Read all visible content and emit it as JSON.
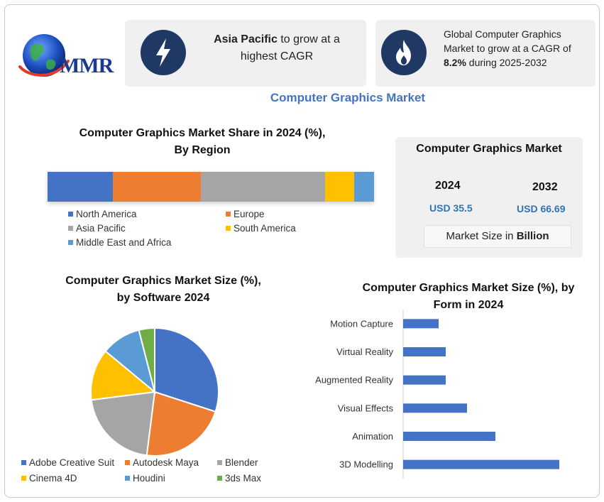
{
  "logo": {
    "text": "MMR"
  },
  "cards": {
    "highlight": {
      "bold": "Asia Pacific",
      "rest": " to grow at a highest CAGR",
      "icon": "lightning-icon"
    },
    "growth": {
      "pre": "Global Computer Graphics Market to grow at a CAGR of ",
      "bold": "8.2%",
      "post": " during 2025-2032",
      "icon": "flame-icon"
    }
  },
  "main_title": "Computer Graphics Market",
  "market_size": {
    "title": "Computer Graphics Market",
    "year1": "2024",
    "value1": "USD 35.5",
    "year2": "2032",
    "value2": "USD 66.69",
    "footer_pre": "Market Size in ",
    "footer_bold": "Billion"
  },
  "colors": {
    "blue": "#4472c4",
    "orange": "#ed7d31",
    "gray": "#a5a5a5",
    "yellow": "#ffc000",
    "lightblue": "#5b9bd5",
    "green": "#70ad47",
    "navy": "#1f3864"
  },
  "chart_data": [
    {
      "type": "bar",
      "orientation": "horizontal-stacked",
      "title_line1": "Computer Graphics Market Share in 2024 (%),",
      "title_line2": "By Region",
      "categories": [
        "North America",
        "Europe",
        "Asia Pacific",
        "South America",
        "Middle East and Africa"
      ],
      "values": [
        20,
        27,
        38,
        9,
        6
      ],
      "colors": [
        "#4472c4",
        "#ed7d31",
        "#a5a5a5",
        "#ffc000",
        "#5b9bd5"
      ]
    },
    {
      "type": "pie",
      "title_line1": "Computer Graphics Market  Size (%),",
      "title_line2": "by Software 2024",
      "categories": [
        "Adobe Creative Suit",
        "Autodesk Maya",
        "Blender",
        "Cinema 4D",
        "Houdini",
        "3ds Max"
      ],
      "values": [
        30,
        22,
        21,
        13,
        10,
        4
      ],
      "colors": [
        "#4472c4",
        "#ed7d31",
        "#a5a5a5",
        "#ffc000",
        "#5b9bd5",
        "#70ad47"
      ]
    },
    {
      "type": "bar",
      "orientation": "horizontal",
      "title_line1": "Computer Graphics Market  Size (%), by",
      "title_line2": "Form in 2024",
      "categories": [
        "Motion Capture",
        "Virtual Reality",
        "Augmented Reality",
        "Visual Effects",
        "Animation",
        "3D Modelling"
      ],
      "values": [
        5,
        6,
        6,
        9,
        13,
        22
      ],
      "xlim": [
        0,
        25
      ],
      "color": "#4472c4"
    }
  ]
}
